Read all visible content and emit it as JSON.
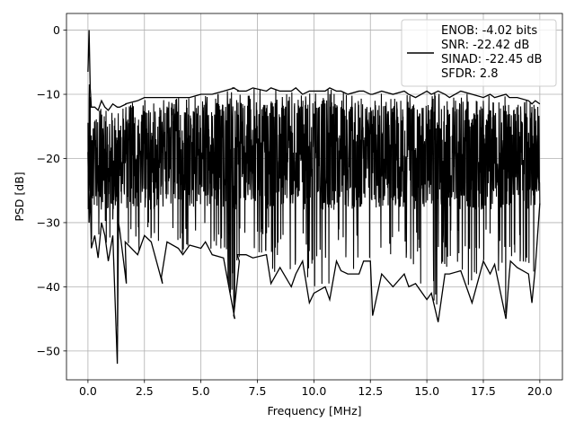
{
  "chart_data": {
    "type": "line",
    "title": "",
    "xlabel": "Frequency [MHz]",
    "ylabel": "PSD [dB]",
    "xlim": [
      -0.95,
      21.0
    ],
    "ylim": [
      -54.5,
      2.6
    ],
    "xticks": [
      0.0,
      2.5,
      5.0,
      7.5,
      10.0,
      12.5,
      15.0,
      17.5,
      20.0
    ],
    "xtick_labels": [
      "0.0",
      "2.5",
      "5.0",
      "7.5",
      "10.0",
      "12.5",
      "15.0",
      "17.5",
      "20.0"
    ],
    "yticks": [
      0,
      -10,
      -20,
      -30,
      -40,
      -50
    ],
    "ytick_labels": [
      "0",
      "−10",
      "−20",
      "−30",
      "−40",
      "−50"
    ],
    "grid": true,
    "legend_position": "top-right",
    "legend_entries": [
      "ENOB: -4.02 bits",
      "SNR: -22.42 dB",
      "SINAD: -22.45 dB",
      "SFDR: 2.8"
    ],
    "series": [
      {
        "color": "#000000",
        "x": [
          0.0,
          0.05,
          0.1,
          0.15,
          0.3,
          0.45,
          0.6,
          0.75,
          0.9,
          1.1,
          1.3,
          1.35,
          1.4,
          1.7,
          1.65,
          2.2,
          2.5,
          2.8,
          3.3,
          3.25,
          3.5,
          4.0,
          4.2,
          4.5,
          5.0,
          5.2,
          5.5,
          6.0,
          6.5,
          6.45,
          6.7,
          6.6,
          7.0,
          7.3,
          7.9,
          8.1,
          8.5,
          9.0,
          9.2,
          9.5,
          9.8,
          10.0,
          10.5,
          10.7,
          11.0,
          11.2,
          11.5,
          12.0,
          12.2,
          12.5,
          12.6,
          13.0,
          13.5,
          14.0,
          14.2,
          14.5,
          15.0,
          15.2,
          15.5,
          15.8,
          16.0,
          16.5,
          17.0,
          17.5,
          17.8,
          18.0,
          18.5,
          18.65,
          18.7,
          19.0,
          19.5,
          19.65,
          19.8,
          20.0
        ],
        "max": [
          -6.5,
          0.0,
          -9.0,
          -12.0,
          -12.0,
          -12.5,
          -11.0,
          -12.0,
          -12.5,
          -11.5,
          -12.0,
          -12.0,
          -12.0,
          -11.5,
          -11.5,
          -11.0,
          -10.5,
          -10.5,
          -10.5,
          -10.5,
          -10.5,
          -10.5,
          -10.5,
          -10.5,
          -10.0,
          -10.0,
          -10.0,
          -9.5,
          -9.0,
          -9.0,
          -9.5,
          -9.5,
          -9.5,
          -9.0,
          -9.5,
          -9.0,
          -9.5,
          -9.5,
          -9.0,
          -10.0,
          -9.5,
          -9.5,
          -9.5,
          -9.0,
          -9.5,
          -9.5,
          -10.0,
          -9.5,
          -9.5,
          -10.0,
          -10.0,
          -9.5,
          -10.0,
          -9.5,
          -10.0,
          -10.5,
          -9.5,
          -10.0,
          -9.5,
          -10.0,
          -10.5,
          -9.5,
          -10.0,
          -10.5,
          -10.0,
          -10.5,
          -10.0,
          -10.5,
          -10.5,
          -10.5,
          -11.0,
          -11.5,
          -11.0,
          -11.5
        ],
        "min": [
          -19.0,
          -30.0,
          -25.0,
          -34.0,
          -32.0,
          -35.5,
          -30.0,
          -32.0,
          -36.0,
          -32.0,
          -52.0,
          -30.0,
          -31.0,
          -39.5,
          -33.0,
          -35.0,
          -32.0,
          -33.0,
          -39.5,
          -38.5,
          -33.0,
          -34.0,
          -35.0,
          -33.5,
          -34.0,
          -33.0,
          -35.0,
          -35.5,
          -45.0,
          -44.5,
          -36.0,
          -35.0,
          -35.0,
          -35.5,
          -35.0,
          -39.5,
          -37.0,
          -40.0,
          -38.0,
          -36.0,
          -42.5,
          -41.0,
          -40.0,
          -42.0,
          -36.0,
          -37.5,
          -38.0,
          -38.0,
          -36.0,
          -36.0,
          -44.5,
          -38.0,
          -40.0,
          -38.0,
          -40.0,
          -39.5,
          -42.0,
          -41.0,
          -45.5,
          -38.0,
          -38.0,
          -37.5,
          -42.5,
          -36.0,
          -38.0,
          -36.5,
          -45.0,
          -38.0,
          -36.0,
          -37.0,
          -38.0,
          -42.5,
          -37.0,
          -27.0
        ]
      }
    ]
  }
}
